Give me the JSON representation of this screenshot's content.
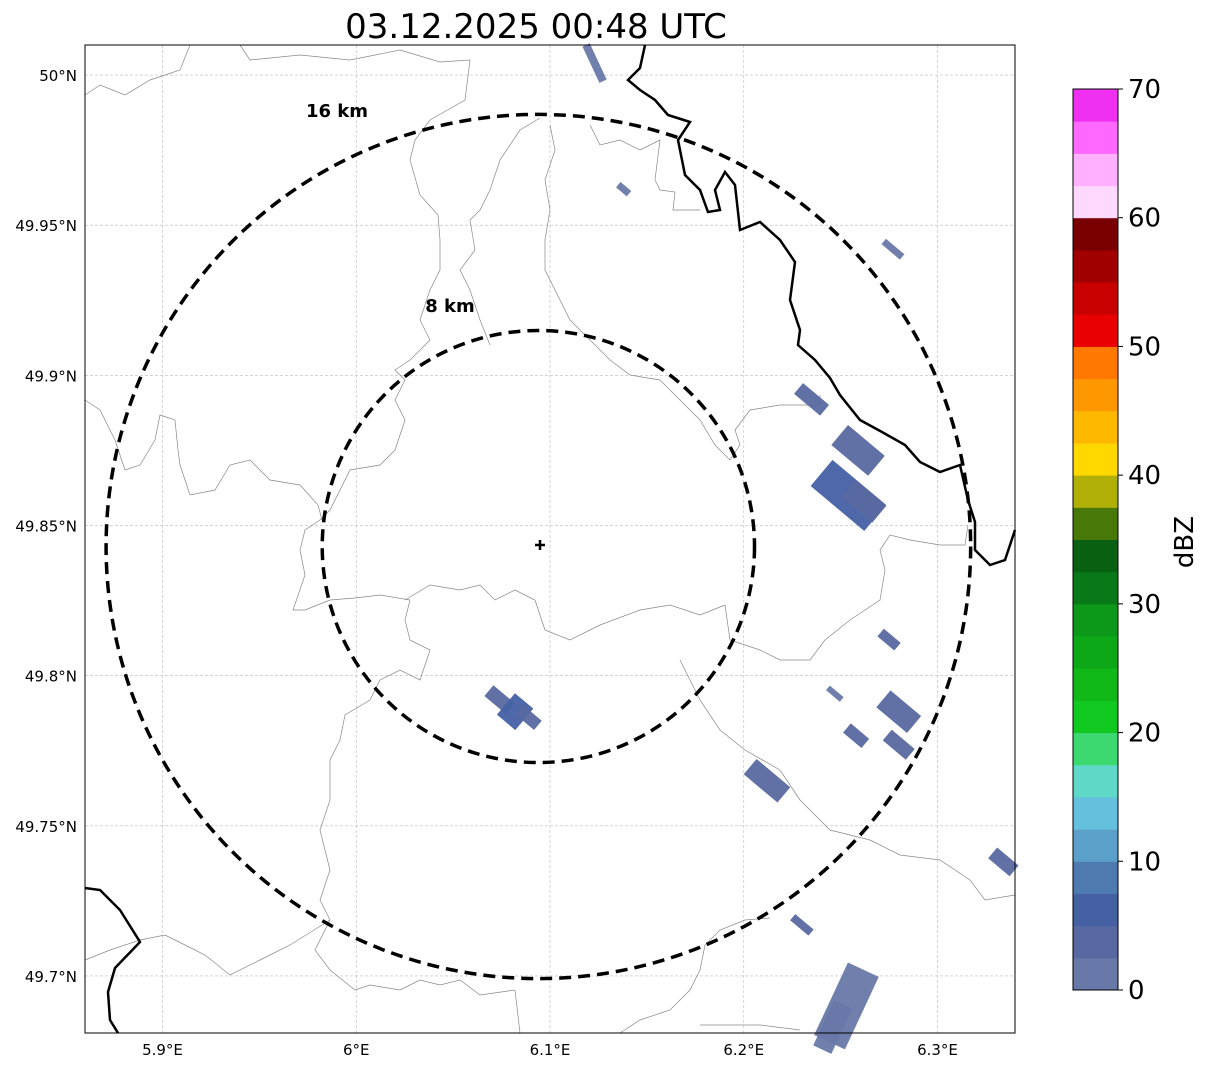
{
  "chart_data": {
    "type": "heatmap",
    "title": "03.12.2025 00:48 UTC",
    "xlim": [
      5.86,
      6.34
    ],
    "ylim": [
      49.681,
      50.01
    ],
    "x_ticks": [
      {
        "v": 5.9,
        "label": "5.9°E"
      },
      {
        "v": 6.0,
        "label": "6°E"
      },
      {
        "v": 6.1,
        "label": "6.1°E"
      },
      {
        "v": 6.2,
        "label": "6.2°E"
      },
      {
        "v": 6.3,
        "label": "6.3°E"
      }
    ],
    "y_ticks": [
      {
        "v": 50.0,
        "label": "50°N"
      },
      {
        "v": 49.95,
        "label": "49.95°N"
      },
      {
        "v": 49.9,
        "label": "49.9°N"
      },
      {
        "v": 49.85,
        "label": "49.85°N"
      },
      {
        "v": 49.8,
        "label": "49.8°N"
      },
      {
        "v": 49.75,
        "label": "49.75°N"
      },
      {
        "v": 49.7,
        "label": "49.7°N"
      }
    ],
    "grid": true,
    "radar_center": {
      "lon": 6.094,
      "lat": 49.843
    },
    "range_rings": [
      {
        "km": 8,
        "label": "8 km"
      },
      {
        "km": 16,
        "label": "16 km"
      }
    ],
    "colorbar": {
      "label": "dBZ",
      "min": 0,
      "max": 70,
      "step": 2.5,
      "ticks": [
        "0",
        "10",
        "20",
        "30",
        "40",
        "50",
        "60",
        "70"
      ],
      "colors": [
        "#6878a8",
        "#5868a0",
        "#4660a4",
        "#4e7ab0",
        "#5aa0c8",
        "#64c0dc",
        "#60d8c8",
        "#3cd870",
        "#10c820",
        "#10b818",
        "#0ca818",
        "#0c9818",
        "#087818",
        "#086010",
        "#487808",
        "#b0b008",
        "#ffd800",
        "#ffb800",
        "#ff9800",
        "#ff7800",
        "#e80000",
        "#c80000",
        "#a00000",
        "#780000",
        "#ffd8ff",
        "#ffb0ff",
        "#ff68ff",
        "#f030f0"
      ]
    },
    "echoes": [
      {
        "lon": 6.123,
        "lat": 50.004,
        "dbz": 1
      },
      {
        "lon": 6.138,
        "lat": 49.962,
        "dbz": 1
      },
      {
        "lon": 6.277,
        "lat": 49.942,
        "dbz": 1
      },
      {
        "lon": 6.235,
        "lat": 49.892,
        "dbz": 3
      },
      {
        "lon": 6.259,
        "lat": 49.875,
        "dbz": 3
      },
      {
        "lon": 6.254,
        "lat": 49.86,
        "dbz": 6
      },
      {
        "lon": 6.262,
        "lat": 49.858,
        "dbz": 3
      },
      {
        "lon": 6.275,
        "lat": 49.812,
        "dbz": 3
      },
      {
        "lon": 6.247,
        "lat": 49.794,
        "dbz": 1
      },
      {
        "lon": 6.28,
        "lat": 49.788,
        "dbz": 3
      },
      {
        "lon": 6.258,
        "lat": 49.78,
        "dbz": 3
      },
      {
        "lon": 6.28,
        "lat": 49.777,
        "dbz": 3
      },
      {
        "lon": 6.212,
        "lat": 49.765,
        "dbz": 3
      },
      {
        "lon": 6.074,
        "lat": 49.792,
        "dbz": 3
      },
      {
        "lon": 6.082,
        "lat": 49.788,
        "dbz": 6
      },
      {
        "lon": 6.089,
        "lat": 49.786,
        "dbz": 3
      },
      {
        "lon": 6.334,
        "lat": 49.738,
        "dbz": 3
      },
      {
        "lon": 6.23,
        "lat": 49.717,
        "dbz": 3
      },
      {
        "lon": 6.253,
        "lat": 49.69,
        "dbz": 1
      },
      {
        "lon": 6.246,
        "lat": 49.683,
        "dbz": 1
      }
    ]
  }
}
